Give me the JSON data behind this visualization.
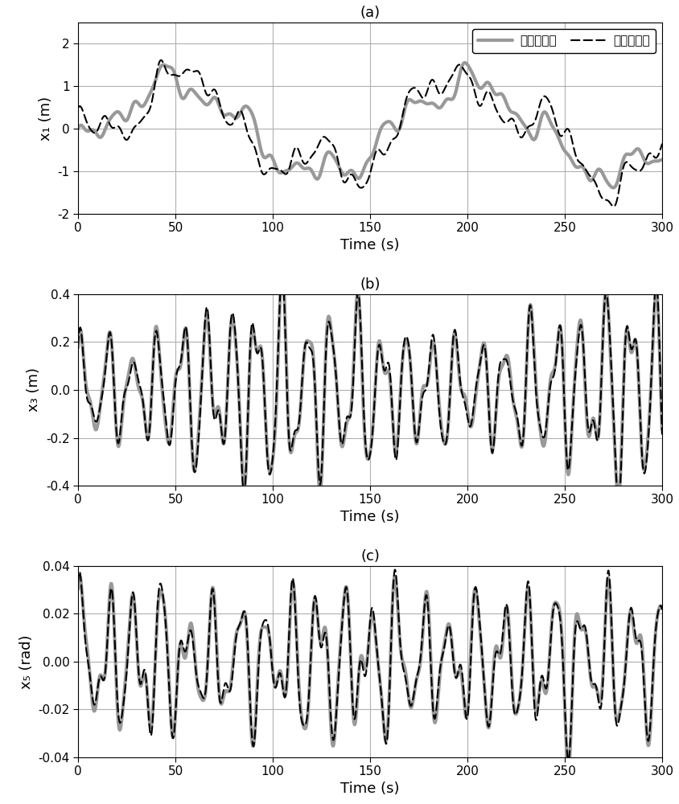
{
  "title_a": "(a)",
  "title_b": "(b)",
  "title_c": "(c)",
  "xlabel": "Time (s)",
  "ylabel_a": "x₁ (m)",
  "ylabel_b": "x₃ (m)",
  "ylabel_c": "x₅ (rad)",
  "xlim": [
    0,
    300
  ],
  "ylim_a": [
    -2,
    2.5
  ],
  "ylim_b": [
    -0.4,
    0.4
  ],
  "ylim_c": [
    -0.04,
    0.04
  ],
  "yticks_a": [
    -2,
    -1,
    0,
    1,
    2
  ],
  "yticks_b": [
    -0.4,
    -0.2,
    0,
    0.2,
    0.4
  ],
  "yticks_c": [
    -0.04,
    -0.02,
    0,
    0.02,
    0.04
  ],
  "xticks": [
    0,
    50,
    100,
    150,
    200,
    250,
    300
  ],
  "legend_label_1": "时域积分法",
  "legend_label_2": "本发明方法",
  "color_gray": "#999999",
  "color_black": "#000000",
  "lw_gray": 3.0,
  "lw_black": 1.5,
  "grid_color": "#b0b0b0",
  "bg_color": "#ffffff"
}
